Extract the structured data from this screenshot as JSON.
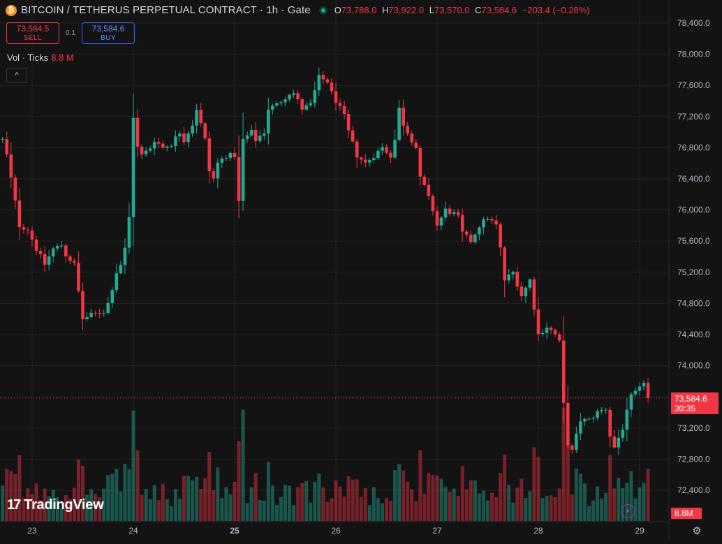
{
  "header": {
    "coin_symbol": "₿",
    "title": "BITCOIN / TETHERUS PERPETUAL CONTRACT · 1h · Gate",
    "ohlc": {
      "o_label": "O",
      "o": "73,788.0",
      "h_label": "H",
      "h": "73,922.0",
      "l_label": "L",
      "l": "73,570.0",
      "c_label": "C",
      "c": "73,584.6",
      "change": "−203.4 (−0.28%)"
    }
  },
  "trade": {
    "sell_price": "73,584.5",
    "sell_label": "SELL",
    "spread": "0.1",
    "buy_price": "73,584.6",
    "buy_label": "BUY"
  },
  "volume_legend": {
    "label": "Vol · Ticks",
    "value": "8.8 M"
  },
  "collapse_icon": "^",
  "branding": {
    "mark": "17",
    "name": "TradingView"
  },
  "last_price": {
    "price": "73,584.6",
    "countdown": "30:35"
  },
  "volume_tag": "8.8M",
  "colors": {
    "up": "#22ab94",
    "down": "#f23645",
    "background": "#131313",
    "grid": "#232323"
  },
  "icons": [
    "bitcoin-icon",
    "live-status-icon",
    "chevron-up-icon",
    "lightning-icon",
    "settings-icon"
  ],
  "chart_data": {
    "type": "candlestick",
    "title": "BITCOIN / TETHERUS PERPETUAL CONTRACT · 1h · Gate",
    "y_axis": {
      "min": 72000,
      "max": 78600,
      "ticks": [
        72400,
        72800,
        73200,
        73600,
        74000,
        74400,
        74800,
        75200,
        75600,
        76000,
        76400,
        76800,
        77200,
        77600,
        78000,
        78400
      ],
      "tick_labels": [
        "72,400.0",
        "72,800.0",
        "73,200.0",
        "73,600.0",
        "74,000.0",
        "74,400.0",
        "74,800.0",
        "75,200.0",
        "75,600.0",
        "76,000.0",
        "76,400.0",
        "76,800.0",
        "77,200.0",
        "77,600.0",
        "78,000.0",
        "78,400.0"
      ]
    },
    "x_axis": {
      "labels": [
        "23",
        "24",
        "25",
        "26",
        "27",
        "28",
        "29"
      ],
      "label_hours": [
        0,
        24,
        48,
        72,
        96,
        120,
        144
      ],
      "bold_label": "25",
      "hour_range": [
        -7,
        155
      ]
    },
    "grid": true,
    "volume_max": 1.4,
    "close_path": [
      [
        -7,
        76900
      ],
      [
        -6,
        76700
      ],
      [
        -4,
        76100
      ],
      [
        -3,
        75800
      ],
      [
        -1,
        75750
      ],
      [
        1,
        75500
      ],
      [
        3,
        75300
      ],
      [
        5,
        75500
      ],
      [
        7,
        75550
      ],
      [
        8,
        75420
      ],
      [
        10,
        75300
      ],
      [
        12,
        74600
      ],
      [
        14,
        74650
      ],
      [
        17,
        74700
      ],
      [
        18,
        74800
      ],
      [
        20,
        75200
      ],
      [
        21,
        75300
      ],
      [
        22,
        75500
      ],
      [
        23,
        75900
      ],
      [
        24,
        77200
      ],
      [
        25,
        76800
      ],
      [
        26,
        76700
      ],
      [
        28,
        76800
      ],
      [
        29,
        76900
      ],
      [
        31,
        76800
      ],
      [
        33,
        76850
      ],
      [
        35,
        77000
      ],
      [
        36,
        76900
      ],
      [
        38,
        77100
      ],
      [
        39,
        77300
      ],
      [
        40,
        77100
      ],
      [
        41,
        76900
      ],
      [
        42,
        76500
      ],
      [
        43,
        76400
      ],
      [
        44,
        76600
      ],
      [
        46,
        76700
      ],
      [
        48,
        76700
      ],
      [
        49,
        76100
      ],
      [
        50,
        76900
      ],
      [
        52,
        77000
      ],
      [
        53,
        76900
      ],
      [
        55,
        77000
      ],
      [
        56,
        77300
      ],
      [
        58,
        77350
      ],
      [
        60,
        77450
      ],
      [
        61,
        77500
      ],
      [
        62,
        77500
      ],
      [
        64,
        77300
      ],
      [
        66,
        77350
      ],
      [
        68,
        77700
      ],
      [
        70,
        77650
      ],
      [
        71,
        77500
      ],
      [
        72,
        77400
      ],
      [
        73,
        77300
      ],
      [
        74,
        77200
      ],
      [
        75,
        77000
      ],
      [
        77,
        76700
      ],
      [
        79,
        76600
      ],
      [
        81,
        76700
      ],
      [
        83,
        76800
      ],
      [
        85,
        76700
      ],
      [
        86,
        76900
      ],
      [
        87,
        77300
      ],
      [
        88,
        77100
      ],
      [
        89,
        77000
      ],
      [
        91,
        76800
      ],
      [
        92,
        76400
      ],
      [
        93,
        76300
      ],
      [
        95,
        76000
      ],
      [
        96,
        75800
      ],
      [
        98,
        76000
      ],
      [
        100,
        75950
      ],
      [
        101,
        75900
      ],
      [
        102,
        75700
      ],
      [
        104,
        75600
      ],
      [
        106,
        75800
      ],
      [
        108,
        75900
      ],
      [
        110,
        75800
      ],
      [
        111,
        75500
      ],
      [
        112,
        75100
      ],
      [
        114,
        75200
      ],
      [
        116,
        74900
      ],
      [
        118,
        75100
      ],
      [
        120,
        74400
      ],
      [
        122,
        74500
      ],
      [
        124,
        74400
      ],
      [
        125,
        74300
      ],
      [
        126,
        73500
      ],
      [
        127,
        73000
      ],
      [
        128,
        72900
      ],
      [
        129,
        73100
      ],
      [
        130,
        73300
      ],
      [
        132,
        73300
      ],
      [
        134,
        73400
      ],
      [
        136,
        73450
      ],
      [
        137,
        73100
      ],
      [
        138,
        72950
      ],
      [
        140,
        73200
      ],
      [
        141,
        73400
      ],
      [
        142,
        73600
      ],
      [
        144,
        73700
      ],
      [
        145,
        73800
      ],
      [
        146,
        73700
      ]
    ],
    "candle_count": 154,
    "last_close": 73584.6
  }
}
